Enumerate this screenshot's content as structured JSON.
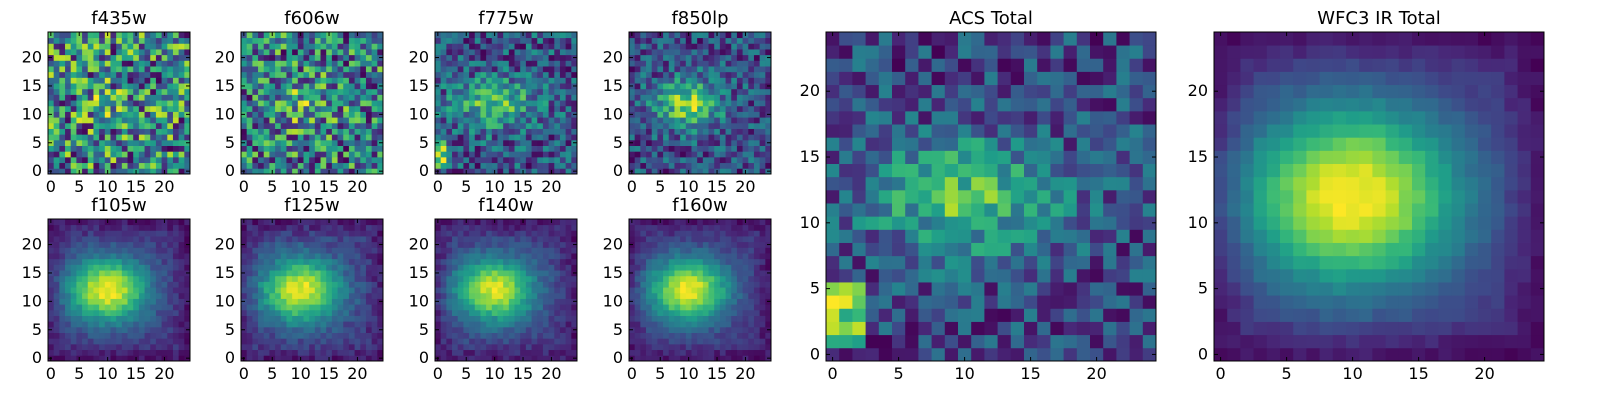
{
  "colormap": "viridis",
  "colors": {
    "viridis": [
      "#440154",
      "#482878",
      "#3e4a89",
      "#31688e",
      "#26828e",
      "#1f9e89",
      "#35b779",
      "#6ece58",
      "#b5de2b",
      "#fde725"
    ],
    "frame": "#000000",
    "background": "#ffffff"
  },
  "chart_data": [
    {
      "type": "heatmap",
      "title": "f435w",
      "grid": false,
      "nx": 25,
      "ny": 25,
      "xlim": [
        -0.5,
        24.5
      ],
      "ylim": [
        -0.5,
        24.5
      ],
      "xticks": [
        "0",
        "5",
        "10",
        "15",
        "20"
      ],
      "yticks": [
        "0",
        "5",
        "10",
        "15",
        "20"
      ],
      "profile": "noise",
      "seed": 11,
      "center": [
        10,
        12
      ],
      "sigma": [
        4,
        3
      ],
      "peak": 0.1,
      "noise": 0.85,
      "base": 0.55
    },
    {
      "type": "heatmap",
      "title": "f606w",
      "grid": false,
      "nx": 25,
      "ny": 25,
      "xlim": [
        -0.5,
        24.5
      ],
      "ylim": [
        -0.5,
        24.5
      ],
      "xticks": [
        "0",
        "5",
        "10",
        "15",
        "20"
      ],
      "yticks": [
        "0",
        "5",
        "10",
        "15",
        "20"
      ],
      "profile": "noise",
      "seed": 23,
      "center": [
        10,
        12
      ],
      "sigma": [
        4,
        3
      ],
      "peak": 0.2,
      "noise": 0.75,
      "base": 0.55
    },
    {
      "type": "heatmap",
      "title": "f775w",
      "grid": false,
      "nx": 25,
      "ny": 25,
      "xlim": [
        -0.5,
        24.5
      ],
      "ylim": [
        -0.5,
        24.5
      ],
      "xticks": [
        "0",
        "5",
        "10",
        "15",
        "20"
      ],
      "yticks": [
        "0",
        "5",
        "10",
        "15",
        "20"
      ],
      "profile": "noisy-source",
      "seed": 37,
      "center": [
        10,
        12
      ],
      "sigma": [
        5,
        3
      ],
      "peak": 0.45,
      "noise": 0.55,
      "base": 0.3,
      "hotspot": [
        0,
        3
      ]
    },
    {
      "type": "heatmap",
      "title": "f850lp",
      "grid": false,
      "nx": 25,
      "ny": 25,
      "xlim": [
        -0.5,
        24.5
      ],
      "ylim": [
        -0.5,
        24.5
      ],
      "xticks": [
        "0",
        "5",
        "10",
        "15",
        "20"
      ],
      "yticks": [
        "0",
        "5",
        "10",
        "15",
        "20"
      ],
      "profile": "noisy-source",
      "seed": 41,
      "center": [
        10,
        12
      ],
      "sigma": [
        4,
        3
      ],
      "peak": 0.55,
      "noise": 0.45,
      "base": 0.3
    },
    {
      "type": "heatmap",
      "title": "f105w",
      "grid": false,
      "nx": 25,
      "ny": 25,
      "xlim": [
        -0.5,
        24.5
      ],
      "ylim": [
        -0.5,
        24.5
      ],
      "xticks": [
        "0",
        "5",
        "10",
        "15",
        "20"
      ],
      "yticks": [
        "0",
        "5",
        "10",
        "15",
        "20"
      ],
      "profile": "source",
      "seed": 53,
      "center": [
        10,
        12
      ],
      "sigma": [
        5,
        4
      ],
      "peak": 0.75,
      "noise": 0.12,
      "base": 0.2
    },
    {
      "type": "heatmap",
      "title": "f125w",
      "grid": false,
      "nx": 25,
      "ny": 25,
      "xlim": [
        -0.5,
        24.5
      ],
      "ylim": [
        -0.5,
        24.5
      ],
      "xticks": [
        "0",
        "5",
        "10",
        "15",
        "20"
      ],
      "yticks": [
        "0",
        "5",
        "10",
        "15",
        "20"
      ],
      "profile": "source",
      "seed": 61,
      "center": [
        10,
        12
      ],
      "sigma": [
        5,
        4
      ],
      "peak": 0.7,
      "noise": 0.14,
      "base": 0.25
    },
    {
      "type": "heatmap",
      "title": "f140w",
      "grid": false,
      "nx": 25,
      "ny": 25,
      "xlim": [
        -0.5,
        24.5
      ],
      "ylim": [
        -0.5,
        24.5
      ],
      "xticks": [
        "0",
        "5",
        "10",
        "15",
        "20"
      ],
      "yticks": [
        "0",
        "5",
        "10",
        "15",
        "20"
      ],
      "profile": "source",
      "seed": 71,
      "center": [
        10,
        12
      ],
      "sigma": [
        5,
        4
      ],
      "peak": 0.75,
      "noise": 0.14,
      "base": 0.2
    },
    {
      "type": "heatmap",
      "title": "f160w",
      "grid": false,
      "nx": 25,
      "ny": 25,
      "xlim": [
        -0.5,
        24.5
      ],
      "ylim": [
        -0.5,
        24.5
      ],
      "xticks": [
        "0",
        "5",
        "10",
        "15",
        "20"
      ],
      "yticks": [
        "0",
        "5",
        "10",
        "15",
        "20"
      ],
      "profile": "source",
      "seed": 83,
      "center": [
        10,
        12
      ],
      "sigma": [
        5,
        4
      ],
      "peak": 0.78,
      "noise": 0.12,
      "base": 0.18
    },
    {
      "type": "heatmap",
      "title": "ACS Total",
      "grid": false,
      "nx": 25,
      "ny": 25,
      "xlim": [
        -0.5,
        24.5
      ],
      "ylim": [
        -0.5,
        24.5
      ],
      "xticks": [
        "0",
        "5",
        "10",
        "15",
        "20"
      ],
      "yticks": [
        "0",
        "5",
        "10",
        "15",
        "20"
      ],
      "profile": "noisy-source",
      "seed": 97,
      "center": [
        10,
        12
      ],
      "sigma": [
        5,
        3
      ],
      "peak": 0.45,
      "noise": 0.4,
      "base": 0.45,
      "hotspot": [
        1,
        3
      ]
    },
    {
      "type": "heatmap",
      "title": "WFC3 IR Total",
      "grid": false,
      "nx": 25,
      "ny": 25,
      "xlim": [
        -0.5,
        24.5
      ],
      "ylim": [
        -0.5,
        24.5
      ],
      "xticks": [
        "0",
        "5",
        "10",
        "15",
        "20"
      ],
      "yticks": [
        "0",
        "5",
        "10",
        "15",
        "20"
      ],
      "profile": "source",
      "seed": 101,
      "center": [
        10,
        12
      ],
      "sigma": [
        6,
        5
      ],
      "peak": 0.8,
      "noise": 0.06,
      "base": 0.15
    }
  ]
}
